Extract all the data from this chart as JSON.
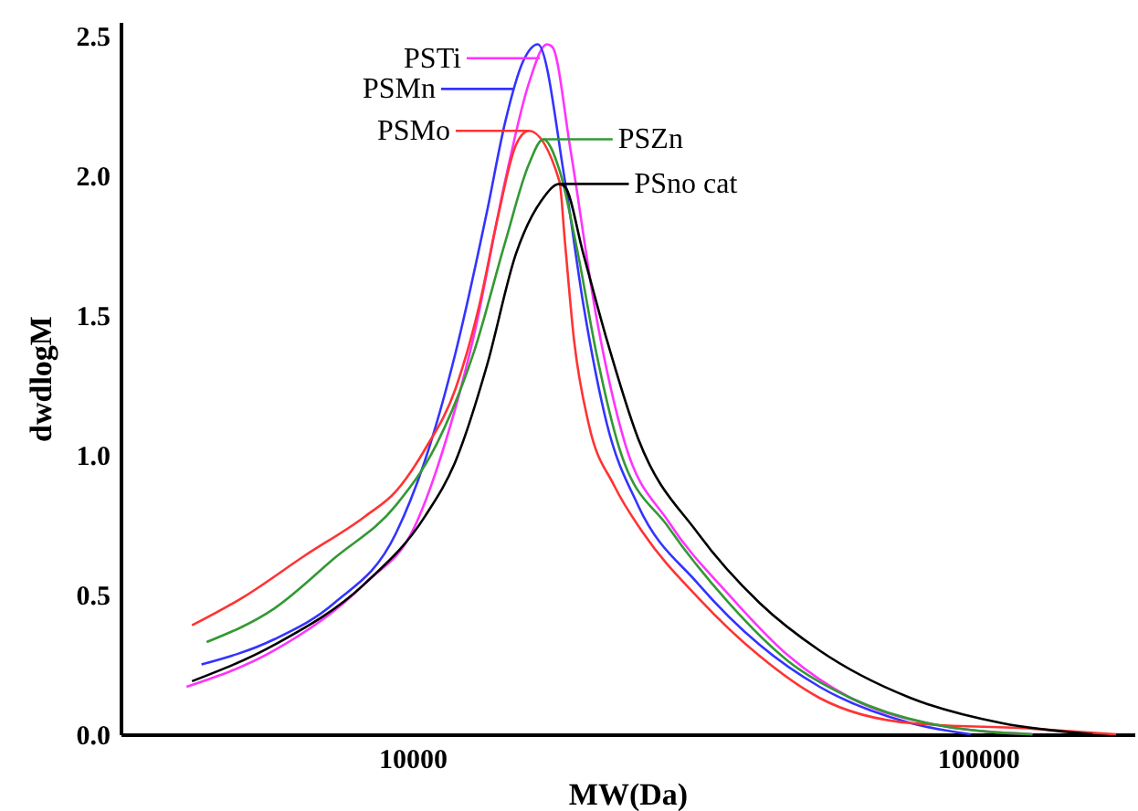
{
  "chart_data": {
    "type": "line",
    "xlabel": "MW(Da)",
    "ylabel": "dwdlogM",
    "log": "x",
    "grid": false,
    "xlim": [
      3050,
      189000
    ],
    "xticks": [
      10000,
      100000
    ],
    "ylim": [
      0,
      2.55
    ],
    "yticks": [
      {
        "value": 0,
        "label": "0.0"
      },
      0.5,
      {
        "value": 1,
        "label": "1.0"
      },
      1.5,
      {
        "value": 2,
        "label": "2.0"
      },
      2.5
    ],
    "series": [
      {
        "color": "#ff33ff",
        "x": [
          3990,
          5700,
          8250,
          10080,
          11340,
          12860,
          14590,
          16070,
          17300,
          17690,
          19050,
          21130,
          23780,
          28400,
          36270,
          46300,
          59560,
          86260,
          124800
        ],
        "values": [
          0.17,
          0.3,
          0.54,
          0.74,
          1.02,
          1.43,
          1.98,
          2.33,
          2.47,
          2.46,
          2.09,
          1.5,
          1.04,
          0.76,
          0.5,
          0.28,
          0.13,
          0.03,
          0.0
        ]
      },
      {
        "color": "#3333ff",
        "x": [
          4240,
          5700,
          7280,
          9360,
          10530,
          11940,
          13550,
          14590,
          15710,
          16670,
          18620,
          20060,
          22090,
          25060,
          31970,
          41120,
          52480,
          76030,
          97050
        ],
        "values": [
          0.25,
          0.34,
          0.47,
          0.72,
          0.98,
          1.37,
          1.87,
          2.19,
          2.41,
          2.47,
          1.98,
          1.54,
          1.11,
          0.82,
          0.54,
          0.32,
          0.17,
          0.04,
          0.0
        ]
      },
      {
        "color": "#ff3333",
        "x": [
          4080,
          5020,
          6460,
          8250,
          9360,
          10530,
          11940,
          13150,
          14160,
          15250,
          16070,
          18200,
          18620,
          19320,
          20510,
          22750,
          25610,
          31970,
          41120,
          52480,
          76030,
          124800,
          175500
        ],
        "values": [
          0.39,
          0.49,
          0.64,
          0.78,
          0.87,
          1.02,
          1.24,
          1.54,
          1.85,
          2.11,
          2.16,
          1.98,
          1.76,
          1.41,
          1.11,
          0.89,
          0.72,
          0.49,
          0.28,
          0.13,
          0.04,
          0.02,
          0.0
        ]
      },
      {
        "color": "#339933",
        "x": [
          4330,
          5700,
          7280,
          9360,
          11050,
          12860,
          14590,
          16070,
          17040,
          18200,
          19630,
          21130,
          23260,
          28400,
          36270,
          46300,
          59560,
          86260,
          124800
        ],
        "values": [
          0.33,
          0.45,
          0.63,
          0.82,
          1.04,
          1.37,
          1.76,
          2.04,
          2.13,
          2.02,
          1.72,
          1.37,
          1.02,
          0.74,
          0.47,
          0.26,
          0.13,
          0.03,
          0.0
        ]
      },
      {
        "color": "#000000",
        "x": [
          4080,
          5700,
          8250,
          10530,
          11940,
          13550,
          15250,
          16910,
          18200,
          18620,
          20060,
          22090,
          25060,
          31970,
          41120,
          52480,
          76030,
          110200,
          159400
        ],
        "values": [
          0.19,
          0.32,
          0.54,
          0.78,
          0.98,
          1.32,
          1.72,
          1.91,
          1.97,
          1.96,
          1.72,
          1.41,
          1.06,
          0.72,
          0.47,
          0.3,
          0.13,
          0.04,
          0.0
        ]
      }
    ],
    "annotations": [
      {
        "text": "PSTi",
        "x": 16800,
        "y": 2.42
      },
      {
        "text": "PSMn",
        "x": 15140,
        "y": 2.31
      },
      {
        "text": "PSMo",
        "x": 16070,
        "y": 2.16
      },
      {
        "text": "PSZn",
        "x": 17040,
        "y": 2.13
      },
      {
        "text": "PSno cat",
        "x": 18200,
        "y": 1.97
      }
    ]
  }
}
